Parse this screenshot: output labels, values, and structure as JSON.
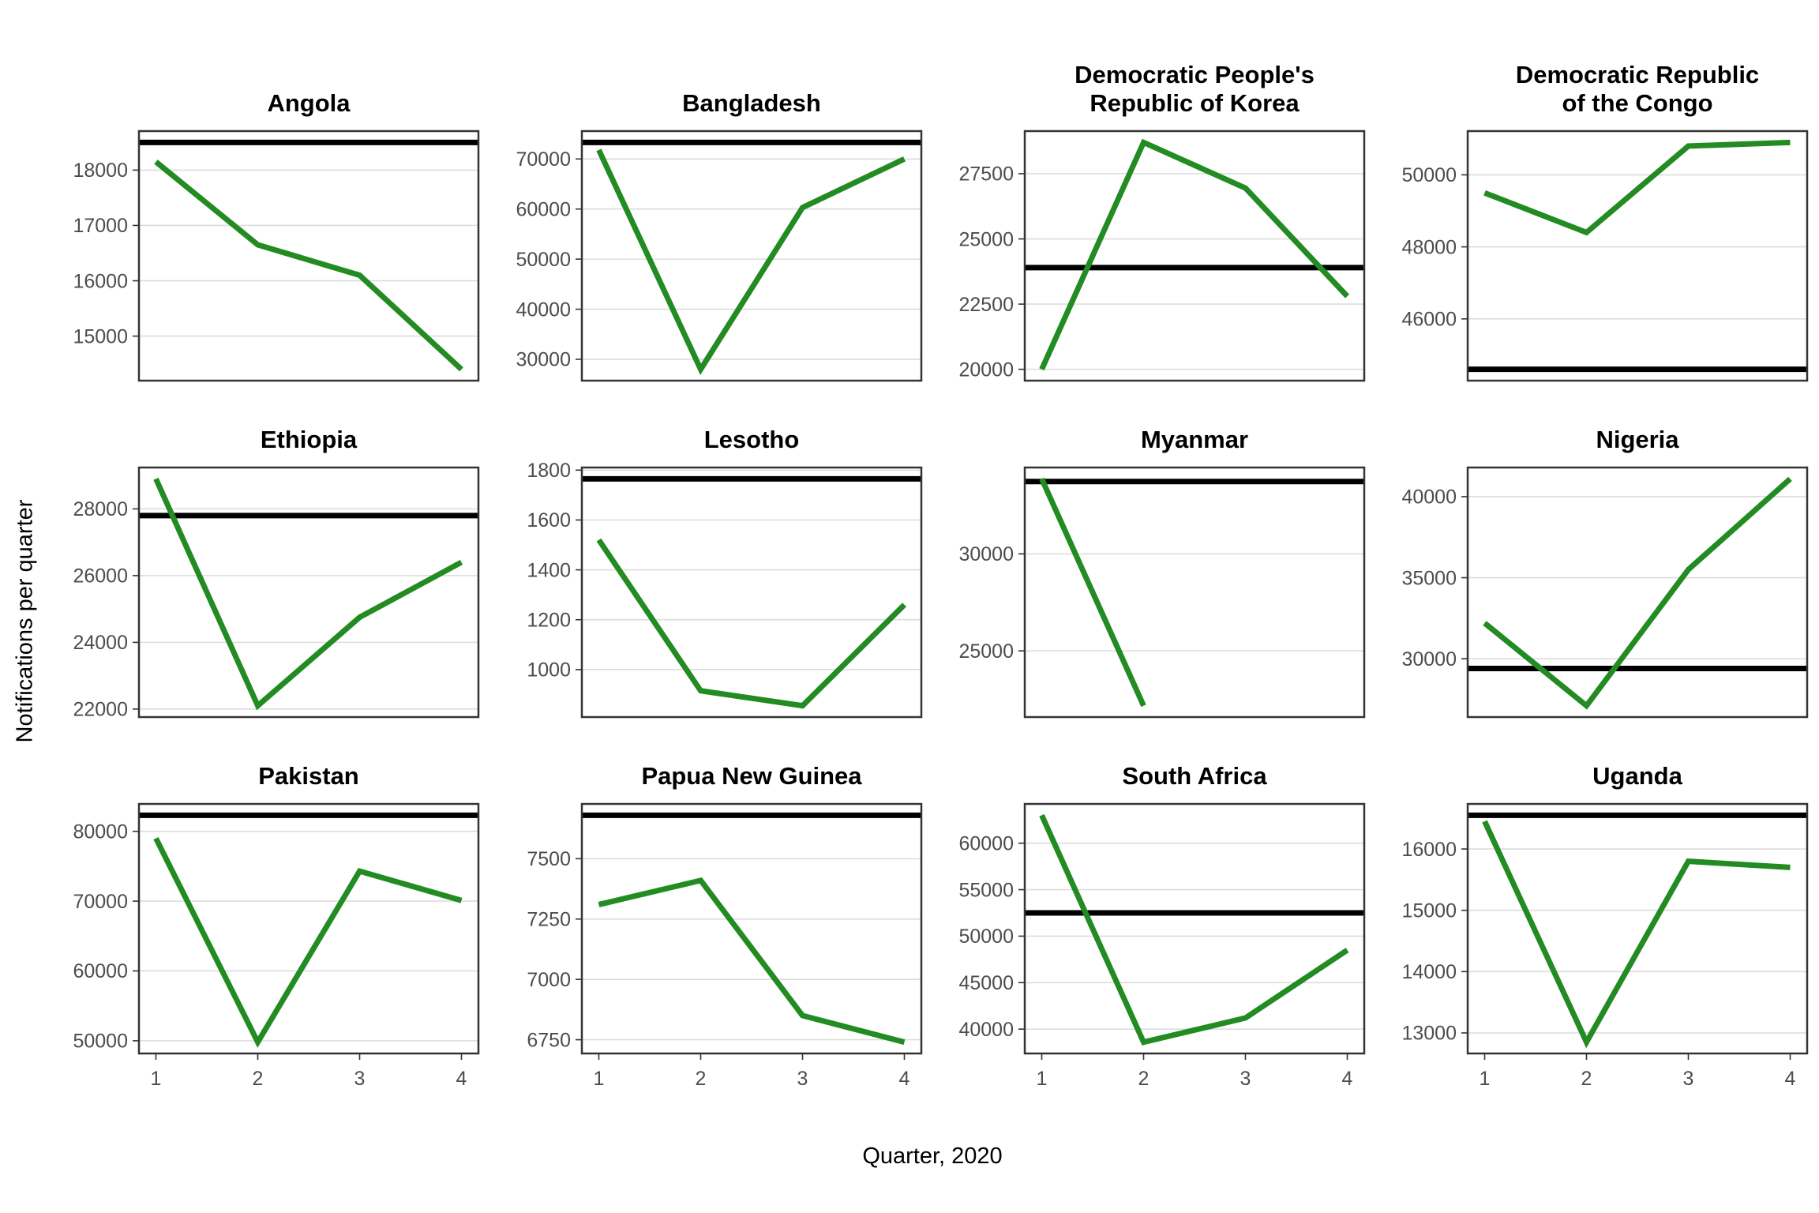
{
  "figure": {
    "xlabel": "Quarter, 2020",
    "ylabel": "Notifications per quarter"
  },
  "chart_data": {
    "type": "line",
    "layout": "small-multiples 3 rows x 4 columns, free y scales",
    "x": [
      1,
      2,
      3,
      4
    ],
    "x_tick_labels": [
      "1",
      "2",
      "3",
      "4"
    ],
    "xlabel": "Quarter, 2020",
    "ylabel": "Notifications per quarter",
    "grid": "horizontal major gridlines only",
    "legend_position": "none",
    "series_style": {
      "data_line_color": "#228B22",
      "reference_line_color": "#000000",
      "data_line_width": 7,
      "reference_line_width": 7
    },
    "facets": [
      {
        "title_lines": [
          "Angola"
        ],
        "yticks": [
          18000,
          17000,
          16000,
          15000
        ],
        "values": [
          18150,
          16650,
          16100,
          14400
        ],
        "reference": 18500
      },
      {
        "title_lines": [
          "Bangladesh"
        ],
        "yticks": [
          70000,
          60000,
          50000,
          40000,
          30000
        ],
        "values": [
          71800,
          28000,
          60300,
          70000
        ],
        "reference": 73300
      },
      {
        "title_lines": [
          "Democratic People's",
          "Republic of Korea"
        ],
        "yticks": [
          27500,
          25000,
          22500,
          20000
        ],
        "values": [
          20000,
          28700,
          26950,
          22800
        ],
        "reference": 23900
      },
      {
        "title_lines": [
          "Democratic Republic",
          "of the Congo"
        ],
        "yticks": [
          50000,
          48000,
          46000
        ],
        "values": [
          49500,
          48400,
          50800,
          50900
        ],
        "reference": 44600
      },
      {
        "title_lines": [
          "Ethiopia"
        ],
        "yticks": [
          28000,
          26000,
          24000,
          22000
        ],
        "values": [
          28900,
          22100,
          24750,
          26400
        ],
        "reference": 27800
      },
      {
        "title_lines": [
          "Lesotho"
        ],
        "yticks": [
          1800,
          1600,
          1400,
          1200,
          1000
        ],
        "values": [
          1520,
          915,
          855,
          1260
        ],
        "reference": 1765
      },
      {
        "title_lines": [
          "Myanmar"
        ],
        "yticks": [
          30000,
          25000
        ],
        "values": [
          33870,
          22170,
          null,
          null
        ],
        "reference": 33730
      },
      {
        "title_lines": [
          "Nigeria"
        ],
        "yticks": [
          40000,
          35000,
          30000
        ],
        "values": [
          32200,
          27100,
          35500,
          41100
        ],
        "reference": 29400
      },
      {
        "title_lines": [
          "Pakistan"
        ],
        "yticks": [
          80000,
          70000,
          60000,
          50000
        ],
        "values": [
          79000,
          49800,
          74300,
          70100
        ],
        "reference": 82300
      },
      {
        "title_lines": [
          "Papua New Guinea"
        ],
        "yticks": [
          7500,
          7250,
          7000,
          6750
        ],
        "values": [
          7310,
          7410,
          6850,
          6740
        ],
        "reference": 7680
      },
      {
        "title_lines": [
          "South Africa"
        ],
        "yticks": [
          60000,
          55000,
          50000,
          45000,
          40000
        ],
        "values": [
          63000,
          38600,
          41200,
          48500
        ],
        "reference": 52500
      },
      {
        "title_lines": [
          "Uganda"
        ],
        "yticks": [
          16000,
          15000,
          14000,
          13000
        ],
        "values": [
          16450,
          12850,
          15800,
          15700
        ],
        "reference": 16550
      }
    ]
  }
}
